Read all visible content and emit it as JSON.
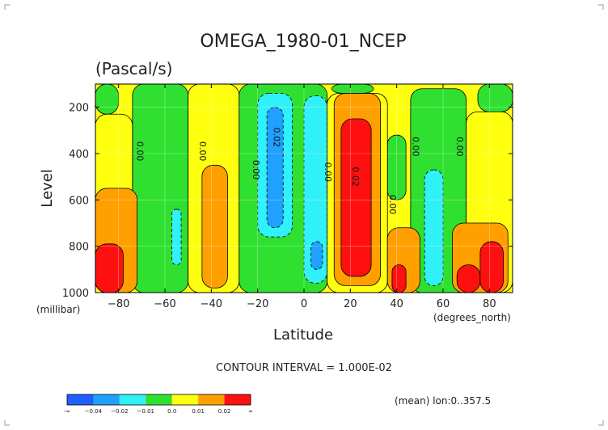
{
  "chart_data": {
    "type": "contour",
    "title": "OMEGA_1980-01_NCEP",
    "subtitle": "(Pascal/s)",
    "xlabel": "Latitude",
    "ylabel": "Level",
    "x_unit": "(degrees_north)",
    "y_unit": "(millibar)",
    "xlim": [
      -90,
      90
    ],
    "ylim": [
      1000,
      100
    ],
    "x_ticks": [
      -80,
      -60,
      -40,
      -20,
      0,
      20,
      40,
      60,
      80
    ],
    "x_tick_labels": [
      "−80",
      "−60",
      "−40",
      "−20",
      "0",
      "20",
      "40",
      "60",
      "80"
    ],
    "y_ticks": [
      200,
      400,
      600,
      800,
      1000
    ],
    "y_tick_labels": [
      "200",
      "400",
      "600",
      "800",
      "1000"
    ],
    "contour_interval_text": "CONTOUR INTERVAL = 1.000E-02",
    "footnote": "(mean) lon:0..357.5",
    "contour_labels": [
      {
        "text": "0.00",
        "lat": -72,
        "level": 390
      },
      {
        "text": "0.00",
        "lat": -45,
        "level": 390
      },
      {
        "text": "0.00",
        "lat": -22,
        "level": 470
      },
      {
        "text": "0.02",
        "lat": -13,
        "level": 330
      },
      {
        "text": "0.00",
        "lat": 9,
        "level": 480
      },
      {
        "text": "0.02",
        "lat": 21,
        "level": 500
      },
      {
        "text": "0.00",
        "lat": 37,
        "level": 620
      },
      {
        "text": "0.00",
        "lat": 47,
        "level": 370
      },
      {
        "text": "0.00",
        "lat": 66,
        "level": 370
      }
    ],
    "levels": [
      -0.04,
      -0.02,
      -0.01,
      0.0,
      0.01,
      0.02
    ],
    "colorbar": {
      "colors": [
        "#1f5fff",
        "#20a0ff",
        "#30f0f8",
        "#30e030",
        "#ffff10",
        "#ffa000",
        "#ff1010"
      ],
      "labels": [
        "-∞",
        "−0.04",
        "−0.02",
        "−0.01",
        "0.0",
        "0.01",
        "0.02",
        "∞"
      ]
    },
    "fill_colors": {
      "strong_neg": "#1f5fff",
      "neg": "#20a0ff",
      "weak_neg": "#30f0f8",
      "near_zero": "#30e030",
      "weak_pos": "#ffff10",
      "pos": "#ffa000",
      "strong_pos": "#ff1010"
    },
    "regions": [
      {
        "color": "near_zero",
        "shape": "band",
        "lat": [
          -74,
          -50
        ],
        "level": [
          100,
          1000
        ]
      },
      {
        "color": "near_zero",
        "shape": "band",
        "lat": [
          -28,
          10
        ],
        "level": [
          100,
          1000
        ]
      },
      {
        "color": "near_zero",
        "shape": "band",
        "lat": [
          46,
          70
        ],
        "level": [
          120,
          1000
        ]
      },
      {
        "color": "near_zero",
        "shape": "band",
        "lat": [
          75,
          90
        ],
        "level": [
          100,
          220
        ]
      },
      {
        "color": "near_zero",
        "shape": "band",
        "lat": [
          -90,
          -80
        ],
        "level": [
          100,
          230
        ]
      },
      {
        "color": "near_zero",
        "shape": "band",
        "lat": [
          12,
          30
        ],
        "level": [
          100,
          140
        ]
      },
      {
        "color": "near_zero",
        "shape": "band",
        "lat": [
          36,
          44
        ],
        "level": [
          320,
          600
        ]
      },
      {
        "color": "weak_neg",
        "shape": "band",
        "lat": [
          -20,
          -5
        ],
        "level": [
          140,
          760
        ]
      },
      {
        "color": "weak_neg",
        "shape": "band",
        "lat": [
          0,
          10
        ],
        "level": [
          150,
          960
        ]
      },
      {
        "color": "weak_neg",
        "shape": "band",
        "lat": [
          52,
          60
        ],
        "level": [
          470,
          970
        ]
      },
      {
        "color": "weak_neg",
        "shape": "band",
        "lat": [
          -57,
          -53
        ],
        "level": [
          640,
          880
        ]
      },
      {
        "color": "neg",
        "shape": "band",
        "lat": [
          -16,
          -9
        ],
        "level": [
          200,
          720
        ]
      },
      {
        "color": "neg",
        "shape": "band",
        "lat": [
          3,
          8
        ],
        "level": [
          780,
          900
        ]
      },
      {
        "color": "weak_pos",
        "shape": "band",
        "lat": [
          -90,
          -74
        ],
        "level": [
          230,
          1000
        ]
      },
      {
        "color": "weak_pos",
        "shape": "band",
        "lat": [
          -50,
          -28
        ],
        "level": [
          100,
          1000
        ]
      },
      {
        "color": "weak_pos",
        "shape": "band",
        "lat": [
          10,
          36
        ],
        "level": [
          140,
          1000
        ]
      },
      {
        "color": "weak_pos",
        "shape": "band",
        "lat": [
          70,
          90
        ],
        "level": [
          220,
          1000
        ]
      },
      {
        "color": "pos",
        "shape": "band",
        "lat": [
          -90,
          -72
        ],
        "level": [
          550,
          1000
        ]
      },
      {
        "color": "pos",
        "shape": "band",
        "lat": [
          -44,
          -33
        ],
        "level": [
          450,
          980
        ]
      },
      {
        "color": "pos",
        "shape": "band",
        "lat": [
          13,
          33
        ],
        "level": [
          140,
          970
        ]
      },
      {
        "color": "pos",
        "shape": "band",
        "lat": [
          36,
          50
        ],
        "level": [
          720,
          1000
        ]
      },
      {
        "color": "pos",
        "shape": "band",
        "lat": [
          64,
          88
        ],
        "level": [
          700,
          1000
        ]
      },
      {
        "color": "strong_pos",
        "shape": "band",
        "lat": [
          -90,
          -78
        ],
        "level": [
          790,
          1000
        ]
      },
      {
        "color": "strong_pos",
        "shape": "band",
        "lat": [
          16,
          29
        ],
        "level": [
          250,
          930
        ]
      },
      {
        "color": "strong_pos",
        "shape": "band",
        "lat": [
          38,
          44
        ],
        "level": [
          880,
          1000
        ]
      },
      {
        "color": "strong_pos",
        "shape": "band",
        "lat": [
          66,
          76
        ],
        "level": [
          880,
          1000
        ]
      },
      {
        "color": "strong_pos",
        "shape": "band",
        "lat": [
          76,
          86
        ],
        "level": [
          780,
          1000
        ]
      }
    ]
  }
}
